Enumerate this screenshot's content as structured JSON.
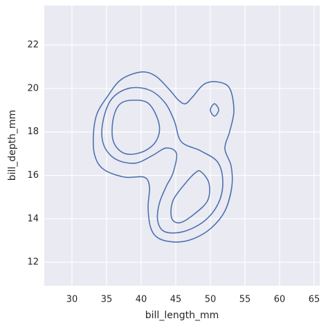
{
  "chart_data": {
    "type": "kde",
    "xlabel": "bill_length_mm",
    "ylabel": "bill_depth_mm",
    "xlim": [
      26,
      65.8
    ],
    "ylim": [
      10.92,
      23.82
    ],
    "xticks": [
      30,
      35,
      40,
      45,
      50,
      55,
      60,
      65
    ],
    "yticks": [
      12,
      14,
      16,
      18,
      20,
      22
    ],
    "grid": true,
    "color": "#4c72b0",
    "series": [
      {
        "x": [
          40,
          42.1,
          44.1,
          45.4,
          46.4,
          47.4,
          49.1,
          51.1,
          52.8,
          53.4,
          52.8,
          52.1,
          53,
          53.1,
          52.1,
          50.1,
          47.6,
          45.1,
          42.6,
          41.4,
          41,
          41.2,
          40.4,
          37.6,
          34.6,
          33.3,
          33.1,
          33.6,
          35.1,
          37.1
        ],
        "y": [
          20.76,
          20.57,
          19.94,
          19.46,
          19.3,
          19.6,
          20.2,
          20.3,
          20,
          18.98,
          18.03,
          17.23,
          16.43,
          15.48,
          14.36,
          13.57,
          13.09,
          12.93,
          13.09,
          13.57,
          14.52,
          15.48,
          15.92,
          15.92,
          16.27,
          16.91,
          17.87,
          18.82,
          19.62,
          20.41
        ]
      },
      {
        "x": [
          38.1,
          41.1,
          43.4,
          44.8,
          45.8,
          48.6,
          51.1,
          51.8,
          51.1,
          49.1,
          46.1,
          43.4,
          42.4,
          42.6,
          43.6,
          44.6,
          45.1,
          43.6,
          41.6,
          39.1,
          36.3,
          34.6,
          34.4,
          35.6
        ],
        "y": [
          20,
          19.94,
          19.36,
          18.5,
          17.55,
          17.13,
          16.59,
          15.64,
          14.68,
          13.89,
          13.41,
          13.41,
          13.89,
          14.68,
          15.48,
          16.11,
          17.01,
          17.26,
          16.91,
          16.56,
          16.75,
          17.39,
          18.34,
          19.46
        ]
      },
      {
        "x": [
          38.6,
          41.1,
          42.6,
          42.1,
          40.1,
          37.6,
          36,
          35.9,
          36.8
        ],
        "y": [
          19.46,
          19.3,
          18.34,
          17.55,
          17.07,
          17.01,
          17.55,
          18.5,
          19.24
        ]
      },
      {
        "x": [
          48.6,
          49.8,
          49.6,
          47.6,
          45.6,
          44.4,
          44.6,
          46.4,
          47.8
        ],
        "y": [
          16.18,
          15.64,
          14.84,
          14.2,
          13.82,
          14.04,
          14.84,
          15.64,
          16.11
        ]
      },
      {
        "x": [
          50.6,
          51.2,
          50.6,
          50
        ],
        "y": [
          19.3,
          19.01,
          18.73,
          19.01
        ]
      }
    ]
  }
}
